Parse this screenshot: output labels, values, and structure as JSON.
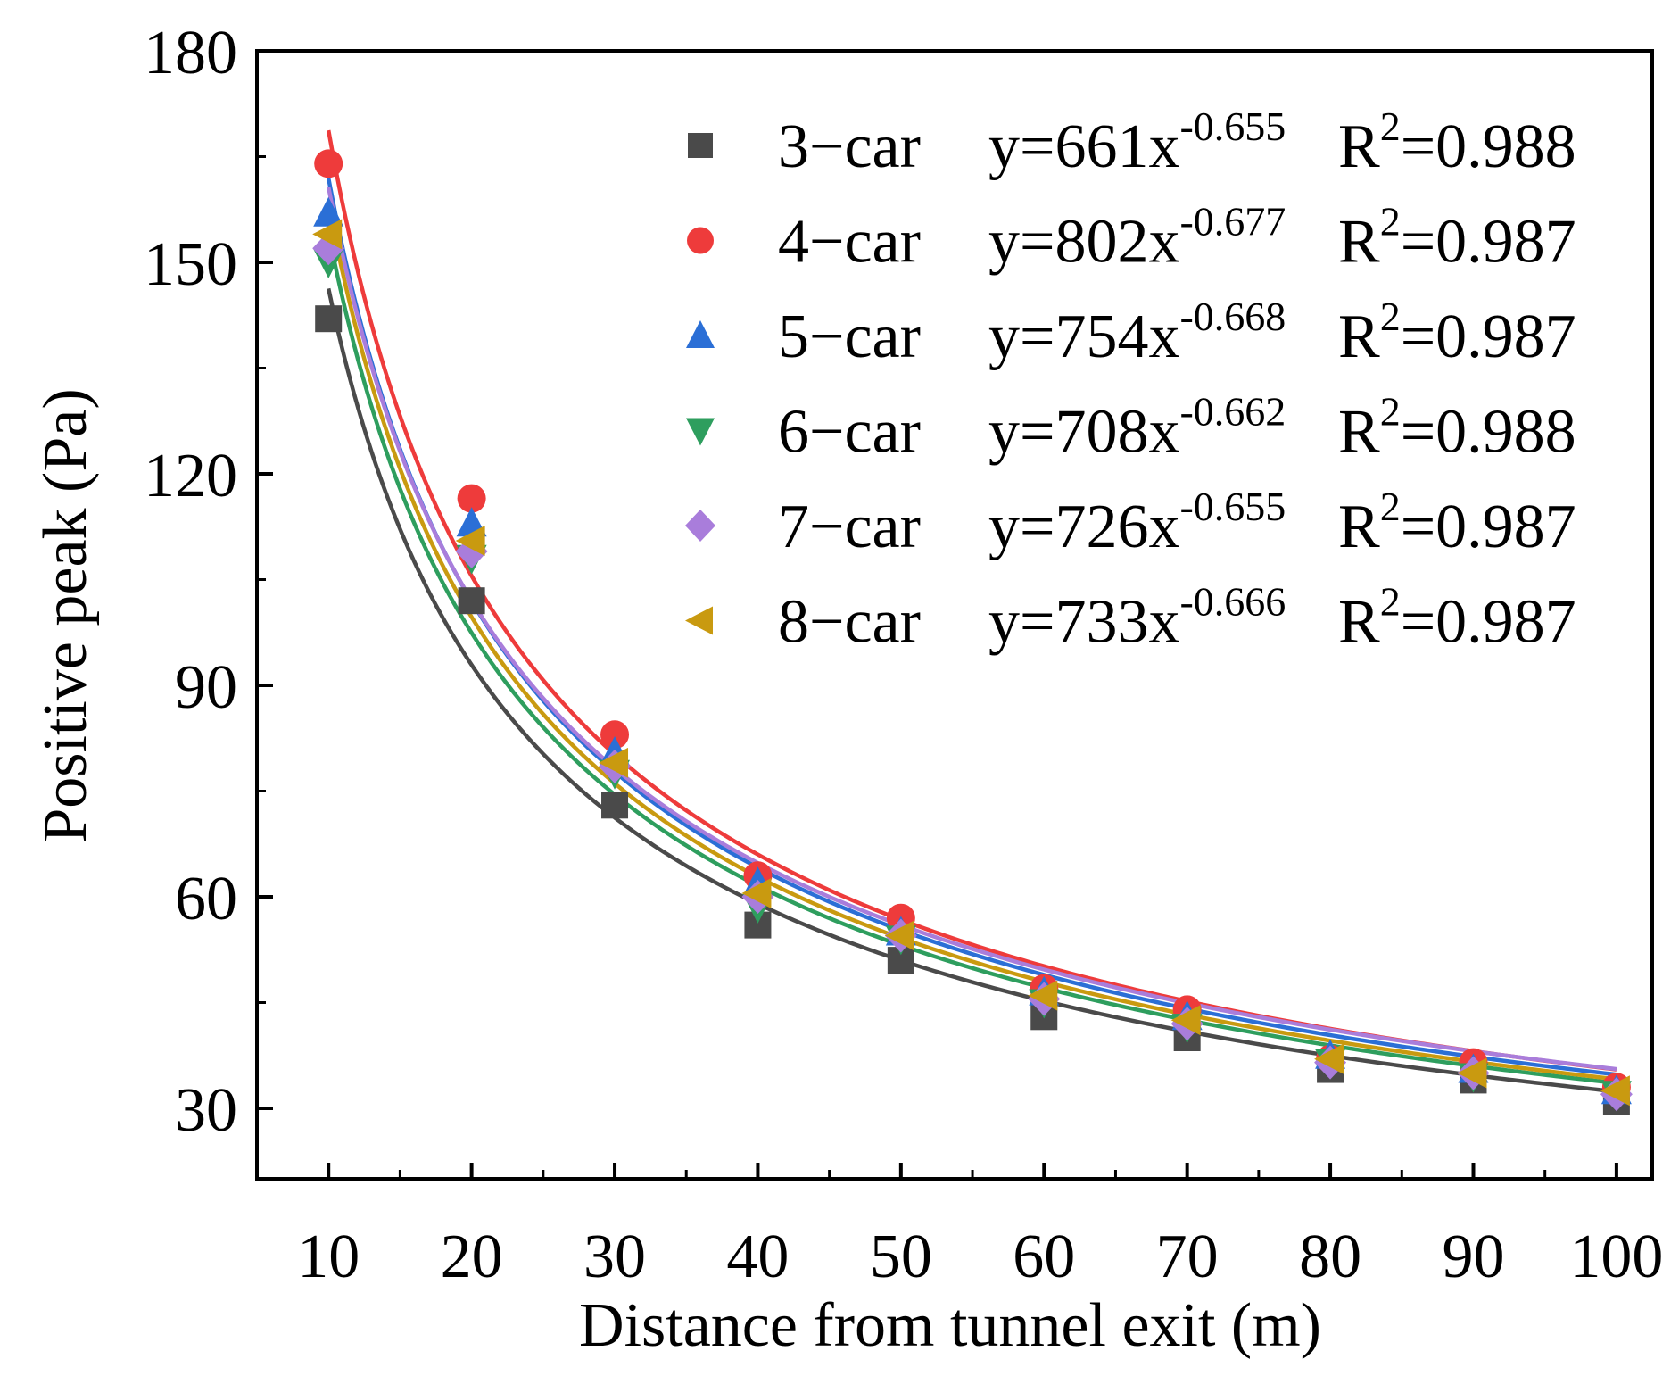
{
  "chart_data": {
    "type": "scatter",
    "xlabel": "Distance from tunnel exit (m)",
    "ylabel": "Positive peak (Pa)",
    "xlim": [
      5,
      102.5
    ],
    "ylim": [
      20,
      180
    ],
    "xticks": [
      10,
      20,
      30,
      40,
      50,
      60,
      70,
      80,
      90,
      100
    ],
    "yticks": [
      30,
      60,
      90,
      120,
      150,
      180
    ],
    "grid": false,
    "legend_position": "top-right",
    "x": [
      10,
      20,
      30,
      40,
      50,
      60,
      70,
      80,
      90,
      100
    ],
    "series": [
      {
        "name": "3−car",
        "marker": "square",
        "color": "#4a4a4a",
        "values": [
          142,
          102,
          73,
          56,
          51,
          43,
          40,
          35.5,
          34,
          31
        ],
        "fit": {
          "a": 661,
          "b": -0.655,
          "r2_label": "0.988"
        }
      },
      {
        "name": "4−car",
        "marker": "circle",
        "color": "#ee3b3b",
        "values": [
          164,
          116.5,
          83,
          63,
          57,
          47,
          44,
          37,
          36.5,
          33
        ],
        "fit": {
          "a": 802,
          "b": -0.677,
          "r2_label": "0.987"
        }
      },
      {
        "name": "5−car",
        "marker": "triangle-up",
        "color": "#2b6fd6",
        "values": [
          157,
          113,
          80.5,
          62,
          55,
          46.5,
          43,
          37.5,
          35.5,
          32.5
        ],
        "fit": {
          "a": 754,
          "b": -0.668,
          "r2_label": "0.987"
        }
      },
      {
        "name": "6−car",
        "marker": "triangle-down",
        "color": "#2e9e5e",
        "values": [
          150,
          108,
          77.5,
          58.5,
          54,
          45,
          41.5,
          36.5,
          34.5,
          32
        ],
        "fit": {
          "a": 708,
          "b": -0.662,
          "r2_label": "0.988"
        }
      },
      {
        "name": "7−car",
        "marker": "diamond",
        "color": "#a97ddb",
        "values": [
          152,
          109,
          78.5,
          60,
          54.5,
          45.5,
          42,
          36.5,
          35,
          32
        ],
        "fit": {
          "a": 726,
          "b": -0.655,
          "r2_label": "0.987"
        }
      },
      {
        "name": "8−car",
        "marker": "triangle-left",
        "color": "#c99a10",
        "values": [
          154,
          110.5,
          79,
          60.5,
          54.5,
          46,
          42.5,
          37,
          35,
          32.5
        ],
        "fit": {
          "a": 733,
          "b": -0.666,
          "r2_label": "0.987"
        }
      }
    ],
    "legend": [
      {
        "label": "3−car",
        "eq_prefix": "y=661x",
        "exponent": "-0.655",
        "r_label": "R",
        "r_sup": "2",
        "r_value": "=0.988"
      },
      {
        "label": "4−car",
        "eq_prefix": "y=802x",
        "exponent": "-0.677",
        "r_label": "R",
        "r_sup": "2",
        "r_value": "=0.987"
      },
      {
        "label": "5−car",
        "eq_prefix": "y=754x",
        "exponent": "-0.668",
        "r_label": "R",
        "r_sup": "2",
        "r_value": "=0.987"
      },
      {
        "label": "6−car",
        "eq_prefix": "y=708x",
        "exponent": "-0.662",
        "r_label": "R",
        "r_sup": "2",
        "r_value": "=0.988"
      },
      {
        "label": "7−car",
        "eq_prefix": "y=726x",
        "exponent": "-0.655",
        "r_label": "R",
        "r_sup": "2",
        "r_value": "=0.987"
      },
      {
        "label": "8−car",
        "eq_prefix": "y=733x",
        "exponent": "-0.666",
        "r_label": "R",
        "r_sup": "2",
        "r_value": "=0.987"
      }
    ]
  }
}
